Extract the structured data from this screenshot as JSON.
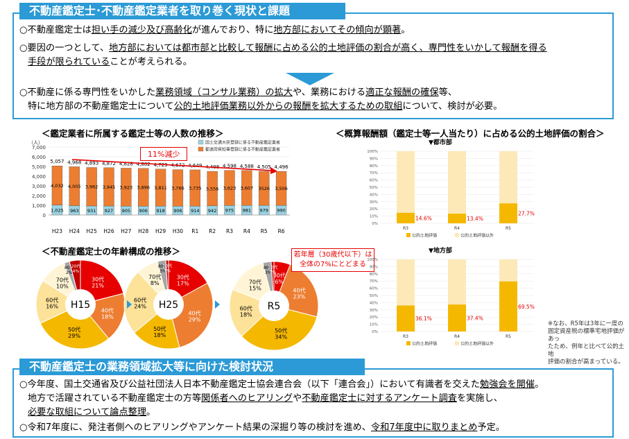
{
  "top": {
    "header": "不動産鑑定士･不動産鑑定業者を取り巻く現状と課題",
    "p1": {
      "a": "○不動産鑑定士は",
      "b": "担い手の減少及び高齢化",
      "c": "が進んでおり、特に",
      "d": "地方部においてその傾向が顕著",
      "e": "。"
    },
    "p2": {
      "a": "○要因の一つとして、",
      "b": "地方部においては都市部と比較して報酬に占める公的土地評価の割合が高く、専門性をいかして報酬を得る"
    },
    "p2b": {
      "a": "手段が限られている",
      "b": "ことが考えられる。"
    },
    "p3": {
      "a": "○不動産に係る専門性をいかした",
      "b": "業務領域（コンサル業務）の拡大",
      "c": "や、業務における",
      "d": "適正な報酬の確保",
      "e": "等、"
    },
    "p3b": {
      "a": "特に地方部の不動産鑑定士について",
      "b": "公的土地評価業務以外からの報酬を拡大するための取組",
      "c": "について、検討が必要。"
    }
  },
  "chart1_title": "＜鑑定業者に所属する鑑定士等の人数の推移＞",
  "chart2_title": "＜不動産鑑定士の年齢構成の推移＞",
  "chart3_title": "＜概算報酬額（鑑定士等一人当たり）に占める公的土地評価の割合＞",
  "callout": "11%減少",
  "young_note": {
    "l1": "若年層（30歳代以下）は",
    "l2": "全体の7%にとどまる"
  },
  "side_note": {
    "l1": "※なお、R5年は3年に一度の",
    "l2": "固定資産税の標準宅地評価があっ",
    "l3": "たため、例年と比べて公的土地",
    "l4": "評価の割合が高まっている。"
  },
  "bottom": {
    "header": "不動産鑑定士の業務領域拡大等に向けた検討状況",
    "p1": {
      "a": "○今年度、国土交通省及び公益社団法人日本不動産鑑定士協会連合会（以下「連合会」）において有識者を交えた",
      "b": "勉強会を開催",
      "c": "。"
    },
    "p1b": {
      "a": "地方で活躍されている不動産鑑定士の方等",
      "b": "関係者へのヒアリング",
      "c": "や",
      "d": "不動産鑑定士に対するアンケート調査",
      "e": "を実施し、"
    },
    "p1c": {
      "a": "必要な取組について論点整理",
      "b": "。"
    },
    "p2": {
      "a": "○令和7年度に、発注者側へのヒアリングやアンケート結果の深掘り等の検討を進め、",
      "b": "令和7年度中に取りまとめ",
      "c": "予定。"
    }
  },
  "chart_data": [
    {
      "type": "bar",
      "title": "＜鑑定業者に所属する鑑定士等の人数の推移＞",
      "ylabel": "（人）",
      "ylim": [
        0,
        7000
      ],
      "yticks": [
        "0",
        "1,000",
        "2,000",
        "3,000",
        "4,000",
        "5,000",
        "6,000",
        "7,000"
      ],
      "categories": [
        "H23",
        "H24",
        "H25",
        "H26",
        "H27",
        "H28",
        "H29",
        "H30",
        "R1",
        "R2",
        "R3",
        "R4",
        "R5",
        "R6"
      ],
      "totals": [
        "5,057",
        "4,968",
        "4,893",
        "4,872",
        "4,828",
        "4,802",
        "4,729",
        "4,672",
        "4,649",
        "4,498",
        "4,598",
        "4,588",
        "4,505",
        "4,496"
      ],
      "series": [
        {
          "name": "国土交通大臣登録に係る不動産鑑定業者",
          "color": "#9bd3e3",
          "values": [
            1025,
            963,
            931,
            927,
            905,
            906,
            918,
            906,
            914,
            942,
            975,
            981,
            979,
            990
          ],
          "labels": [
            "1,025",
            "963",
            "931",
            "927",
            "905",
            "906",
            "918",
            "906",
            "914",
            "942",
            "975",
            "981",
            "979",
            "990"
          ]
        },
        {
          "name": "都道府県知事登録に係る不動産鑑定業者",
          "color": "#ed7d31",
          "values": [
            4032,
            4005,
            3962,
            3945,
            3923,
            3896,
            3811,
            3766,
            3735,
            3556,
            3623,
            3607,
            3526,
            3506
          ],
          "labels": [
            "4,032",
            "4,005",
            "3,962",
            "3,945",
            "3,923",
            "3,896",
            "3,811",
            "3,766",
            "3,735",
            "3,556",
            "3,623",
            "3,607",
            "3526",
            "3,506"
          ]
        }
      ]
    },
    {
      "type": "pie",
      "title": "H15",
      "slices": [
        {
          "name": "30代",
          "value": 21,
          "label": "30代",
          "pct": "21%",
          "color": "#e60000"
        },
        {
          "name": "40代",
          "value": 18,
          "label": "40代",
          "pct": "18%",
          "color": "#ed7d31"
        },
        {
          "name": "50代",
          "value": 29,
          "label": "50代",
          "pct": "29%",
          "color": "#f5b800"
        },
        {
          "name": "60代",
          "value": 16,
          "label": "60代",
          "pct": "16%",
          "color": "#fde29a"
        },
        {
          "name": "70代",
          "value": 10,
          "label": "70代",
          "pct": "10%",
          "color": "#fff5d6"
        },
        {
          "name": "80代",
          "value": 2,
          "label": "80代",
          "pct": "2%",
          "color": "#a5a5a5"
        },
        {
          "name": "20代",
          "value": 4,
          "label": "20代",
          "pct": "4%",
          "color": "#c00000"
        }
      ]
    },
    {
      "type": "pie",
      "title": "H25",
      "slices": [
        {
          "name": "30代",
          "value": 17,
          "label": "30代",
          "pct": "17%",
          "color": "#e60000"
        },
        {
          "name": "40代",
          "value": 29,
          "label": "40代",
          "pct": "29%",
          "color": "#ed7d31"
        },
        {
          "name": "50代",
          "value": 18,
          "label": "50代",
          "pct": "18%",
          "color": "#f5b800"
        },
        {
          "name": "60代",
          "value": 24,
          "label": "60代",
          "pct": "24%",
          "color": "#fde29a"
        },
        {
          "name": "70代",
          "value": 8,
          "label": "70代",
          "pct": "8%",
          "color": "#fff5d6"
        },
        {
          "name": "80代",
          "value": 3,
          "label": "80代",
          "pct": "3%",
          "color": "#a5a5a5"
        },
        {
          "name": "20代",
          "value": 1,
          "label": "20代",
          "pct": "1%",
          "color": "#c00000"
        }
      ]
    },
    {
      "type": "pie",
      "title": "R5",
      "slices": [
        {
          "name": "30代",
          "value": 6,
          "label": "30代",
          "pct": "6%",
          "color": "#e60000"
        },
        {
          "name": "40代",
          "value": 23,
          "label": "40代",
          "pct": "23%",
          "color": "#ed7d31"
        },
        {
          "name": "50代",
          "value": 34,
          "label": "50代",
          "pct": "34%",
          "color": "#f5b800"
        },
        {
          "name": "60代",
          "value": 18,
          "label": "60代",
          "pct": "18%",
          "color": "#fde29a"
        },
        {
          "name": "70代",
          "value": 15,
          "label": "70代",
          "pct": "15%",
          "color": "#fff5d6"
        },
        {
          "name": "80代",
          "value": 3,
          "label": "80代",
          "pct": "3%",
          "color": "#a5a5a5"
        },
        {
          "name": "20代",
          "value": 1,
          "label": "20代",
          "pct": "1%",
          "color": "#c00000"
        }
      ]
    },
    {
      "type": "bar",
      "title": "▼都市部",
      "categories": [
        "R3",
        "R4",
        "R5"
      ],
      "ylim": [
        0,
        100
      ],
      "yticks": [
        "0%",
        "10%",
        "20%",
        "30%",
        "40%",
        "50%",
        "60%",
        "70%",
        "80%",
        "90%",
        "100%"
      ],
      "series": [
        {
          "name": "公的土地評価",
          "color": "#f5b800",
          "values": [
            14.6,
            13.4,
            27.7
          ],
          "labels": [
            "14.6%",
            "13.4%",
            "27.7%"
          ]
        },
        {
          "name": "公的土地評価以外",
          "color": "#fde9b8",
          "values": [
            85.4,
            86.6,
            72.3
          ]
        }
      ]
    },
    {
      "type": "bar",
      "title": "▼地方部",
      "categories": [
        "R3",
        "R4",
        "R5"
      ],
      "ylim": [
        0,
        100
      ],
      "yticks": [
        "0%",
        "10%",
        "20%",
        "30%",
        "40%",
        "50%",
        "60%",
        "70%",
        "80%",
        "90%",
        "100%"
      ],
      "series": [
        {
          "name": "公的土地評価",
          "color": "#f5b800",
          "values": [
            36.1,
            37.4,
            69.5
          ],
          "labels": [
            "36.1%",
            "37.4%",
            "69.5%"
          ]
        },
        {
          "name": "公的土地評価以外",
          "color": "#fde9b8",
          "values": [
            63.9,
            62.6,
            30.5
          ]
        }
      ]
    }
  ]
}
